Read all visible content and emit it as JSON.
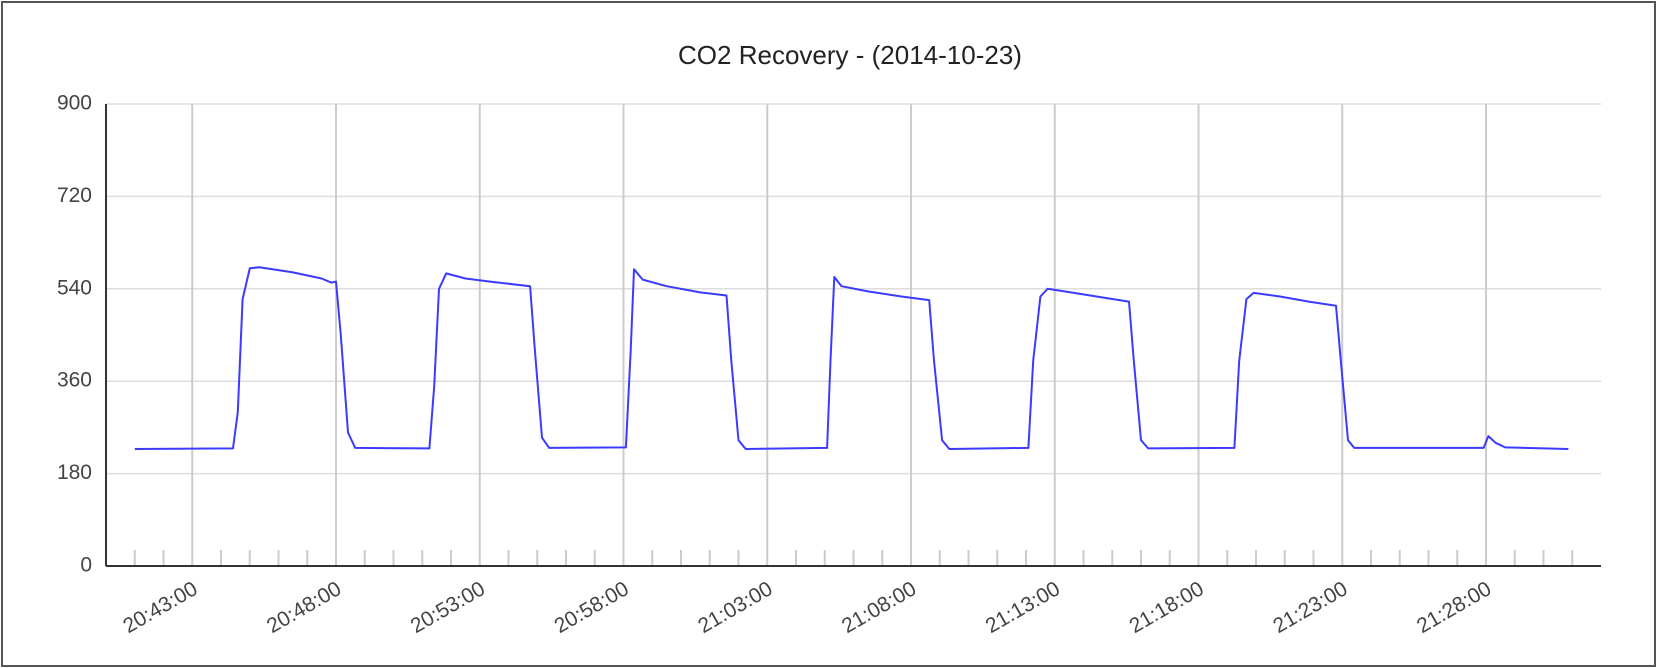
{
  "chart_data": {
    "type": "line",
    "title": "CO2 Recovery - (2014-10-23)",
    "x": [
      "20:41:00",
      "20:44:25",
      "20:44:35",
      "20:44:45",
      "20:45:00",
      "20:45:20",
      "20:46:30",
      "20:47:30",
      "20:47:50",
      "20:48:00",
      "20:48:10",
      "20:48:25",
      "20:48:40",
      "20:51:15",
      "20:51:25",
      "20:51:35",
      "20:51:50",
      "20:52:30",
      "20:53:30",
      "20:54:45",
      "20:54:55",
      "20:55:10",
      "20:55:25",
      "20:58:05",
      "20:58:15",
      "20:58:22",
      "20:58:40",
      "20:59:30",
      "21:00:40",
      "21:01:35",
      "21:01:45",
      "21:02:00",
      "21:02:15",
      "21:05:05",
      "21:05:12",
      "21:05:20",
      "21:05:35",
      "21:06:30",
      "21:07:40",
      "21:08:38",
      "21:08:48",
      "21:09:05",
      "21:09:20",
      "21:12:05",
      "21:12:15",
      "21:12:30",
      "21:12:45",
      "21:13:40",
      "21:14:40",
      "21:15:35",
      "21:15:45",
      "21:16:00",
      "21:16:15",
      "21:19:15",
      "21:19:25",
      "21:19:40",
      "21:19:55",
      "21:20:50",
      "21:21:50",
      "21:22:47",
      "21:22:57",
      "21:23:12",
      "21:23:25",
      "21:27:55",
      "21:28:05",
      "21:28:20",
      "21:28:40",
      "21:30:52"
    ],
    "series": [
      {
        "color": "#3b3bff",
        "values": [
          228,
          229,
          300,
          520,
          580,
          582,
          572,
          560,
          552,
          554,
          450,
          260,
          230,
          229,
          350,
          540,
          570,
          560,
          553,
          545,
          420,
          250,
          230,
          231,
          420,
          578,
          558,
          545,
          533,
          527,
          400,
          245,
          228,
          230,
          400,
          563,
          545,
          535,
          525,
          518,
          400,
          245,
          228,
          230,
          400,
          525,
          540,
          532,
          523,
          515,
          400,
          245,
          229,
          230,
          400,
          520,
          532,
          525,
          515,
          507,
          400,
          245,
          230,
          230,
          253,
          240,
          231,
          228
        ]
      }
    ],
    "xlim": [
      "20:40:00",
      "21:32:00"
    ],
    "xticks": [
      "20:43:00",
      "20:48:00",
      "20:53:00",
      "20:58:00",
      "21:03:00",
      "21:08:00",
      "21:13:00",
      "21:18:00",
      "21:23:00",
      "21:28:00"
    ],
    "xminorticks": [
      "20:41:00",
      "20:42:00",
      "20:44:00",
      "20:45:00",
      "20:46:00",
      "20:47:00",
      "20:49:00",
      "20:50:00",
      "20:51:00",
      "20:52:00",
      "20:54:00",
      "20:55:00",
      "20:56:00",
      "20:57:00",
      "20:59:00",
      "21:00:00",
      "21:01:00",
      "21:02:00",
      "21:04:00",
      "21:05:00",
      "21:06:00",
      "21:07:00",
      "21:09:00",
      "21:10:00",
      "21:11:00",
      "21:12:00",
      "21:14:00",
      "21:15:00",
      "21:16:00",
      "21:17:00",
      "21:19:00",
      "21:20:00",
      "21:21:00",
      "21:22:00",
      "21:24:00",
      "21:25:00",
      "21:26:00",
      "21:27:00",
      "21:29:00",
      "21:30:00",
      "21:31:00"
    ],
    "ylim": [
      0,
      900
    ],
    "yticks": [
      0,
      180,
      360,
      540,
      720,
      900
    ],
    "grid": true
  }
}
